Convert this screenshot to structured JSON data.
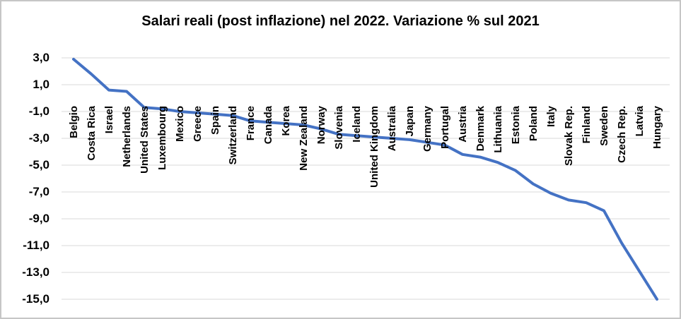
{
  "chart_data": {
    "type": "line",
    "title": "Salari reali (post inflazione) nel 2022. Variazione % sul 2021",
    "categories": [
      "Belgio",
      "Costa Rica",
      "Israel",
      "Netherlands",
      "United States",
      "Luxembourg",
      "Mexico",
      "Greece",
      "Spain",
      "Switzerland",
      "France",
      "Canada",
      "Korea",
      "New Zealand",
      "Norway",
      "Slovenia",
      "Iceland",
      "United Kingdom",
      "Australia",
      "Japan",
      "Germany",
      "Portugal",
      "Austria",
      "Denmark",
      "Lithuania",
      "Estonia",
      "Poland",
      "Italy",
      "Slovak Rep.",
      "Finland",
      "Sweden",
      "Czech Rep.",
      "Latvia",
      "Hungary"
    ],
    "values": [
      2.9,
      1.8,
      0.6,
      0.5,
      -0.7,
      -0.8,
      -1.0,
      -1.1,
      -1.2,
      -1.3,
      -1.7,
      -1.8,
      -1.9,
      -2.0,
      -2.3,
      -2.7,
      -2.8,
      -2.9,
      -3.0,
      -3.1,
      -3.3,
      -3.5,
      -4.2,
      -4.4,
      -4.8,
      -5.4,
      -6.4,
      -7.1,
      -7.6,
      -7.8,
      -8.4,
      -10.8,
      -12.9,
      -15.0
    ],
    "xlabel": "",
    "ylabel": "",
    "ylim": [
      -15,
      3
    ],
    "ytick_step": 2,
    "ytick_labels": [
      "3,0",
      "1,0",
      "-1,0",
      "-3,0",
      "-5,0",
      "-7,0",
      "-9,0",
      "-11,0",
      "-13,0",
      "-15,0"
    ],
    "grid": "horizontal-only",
    "gridline_color": "#d9d9d9",
    "legend": "none",
    "line_color": "#4472C4",
    "frame_border_color": "#c6c6c6"
  }
}
